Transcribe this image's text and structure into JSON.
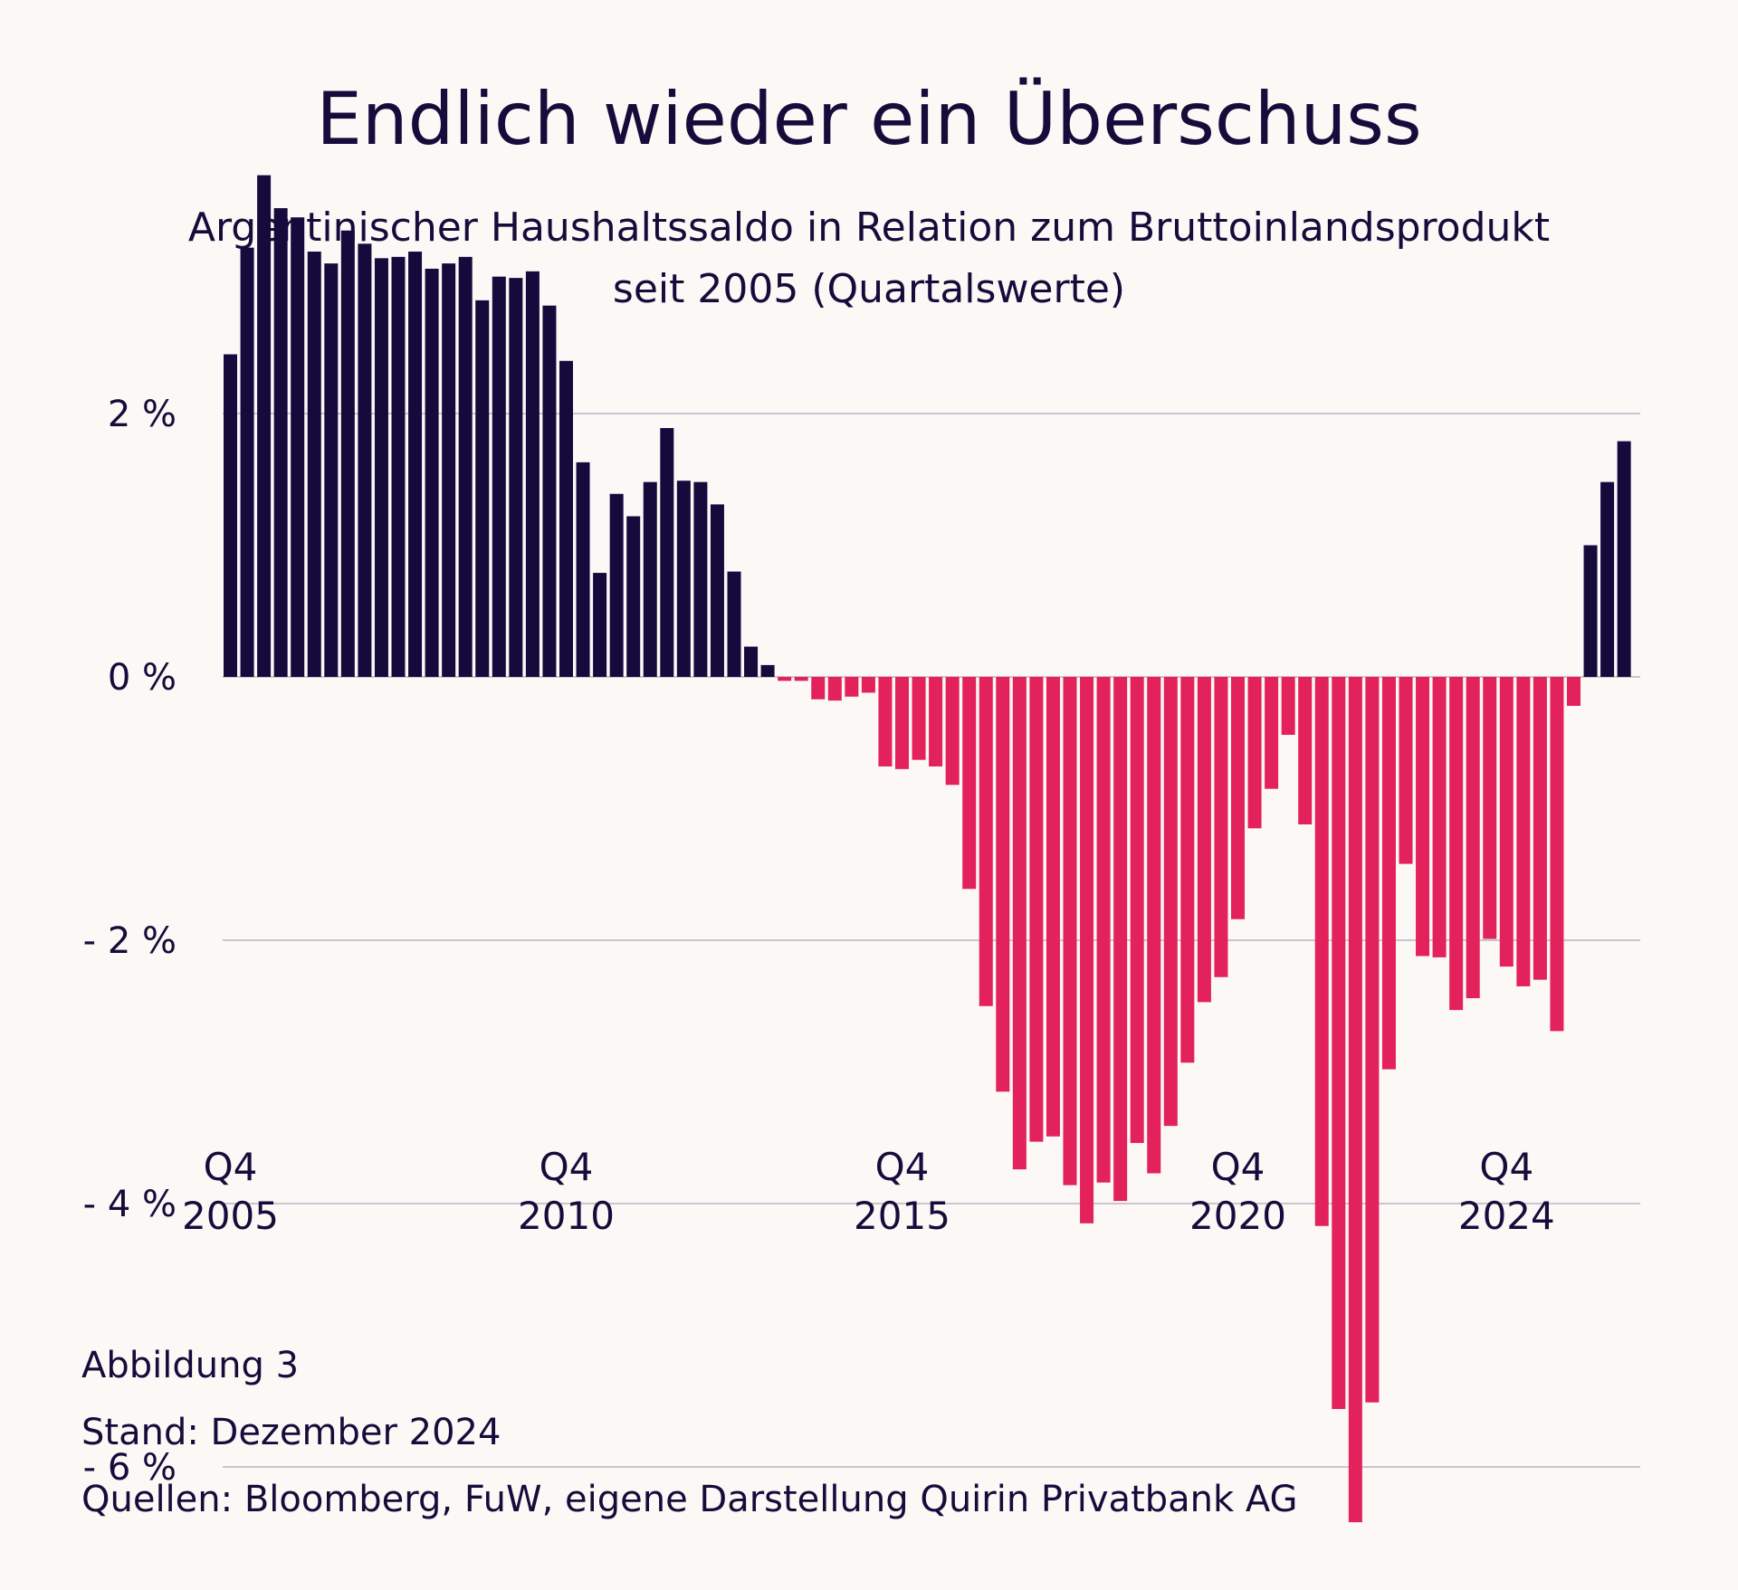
{
  "title": "Endlich wieder ein Überschuss",
  "subtitle": {
    "line1": "Argentinischer Haushaltssaldo in Relation zum Bruttoinlandsprodukt",
    "line2": "seit 2005 (Quartalswerte)"
  },
  "colors": {
    "positive": "#160a3d",
    "negative": "#e3215a",
    "grid": "#b9b4c4",
    "text": "#170b3b",
    "background": "#fbf8f6"
  },
  "chart_data": {
    "type": "bar",
    "title": "",
    "xlabel": "",
    "ylabel": "",
    "ylim": [
      -7,
      4
    ],
    "yticks": [
      {
        "value": 2,
        "label": "2 %"
      },
      {
        "value": 0,
        "label": "0 %"
      },
      {
        "value": -2,
        "label": "- 2 %"
      },
      {
        "value": -4,
        "label": "- 4 %"
      },
      {
        "value": -6,
        "label": "- 6 %"
      }
    ],
    "grid": true,
    "xticks": [
      {
        "index": 0,
        "line1": "Q4",
        "line2": "2005"
      },
      {
        "index": 20,
        "line1": "Q4",
        "line2": "2010"
      },
      {
        "index": 40,
        "line1": "Q4",
        "line2": "2015"
      },
      {
        "index": 60,
        "line1": "Q4",
        "line2": "2020"
      },
      {
        "index": 76,
        "line1": "Q4",
        "line2": "2024"
      }
    ],
    "values": [
      2.45,
      3.26,
      3.81,
      3.56,
      3.49,
      3.23,
      3.14,
      3.39,
      3.29,
      3.18,
      3.19,
      3.23,
      3.1,
      3.14,
      3.19,
      2.86,
      3.04,
      3.03,
      3.08,
      2.82,
      2.4,
      1.63,
      0.79,
      1.39,
      1.22,
      1.48,
      1.89,
      1.49,
      1.48,
      1.31,
      0.8,
      0.23,
      0.09,
      -0.03,
      -0.03,
      -0.17,
      -0.18,
      -0.15,
      -0.12,
      -0.68,
      -0.7,
      -0.63,
      -0.68,
      -0.82,
      -1.61,
      -2.5,
      -3.15,
      -3.74,
      -3.53,
      -3.49,
      -3.86,
      -4.15,
      -3.84,
      -3.98,
      -3.54,
      -3.77,
      -3.41,
      -2.93,
      -2.47,
      -2.28,
      -1.84,
      -1.15,
      -0.85,
      -0.44,
      -1.12,
      -4.17,
      -5.56,
      -6.42,
      -5.51,
      -2.98,
      -1.42,
      -2.12,
      -2.13,
      -2.53,
      -2.44,
      -1.99,
      -2.2,
      -2.35,
      -2.3,
      -2.69,
      -0.22,
      1.0,
      1.48,
      1.79
    ]
  },
  "footer": {
    "figure": "Abbildung 3",
    "date": "Stand: Dezember 2024",
    "sources": "Quellen: Bloomberg, FuW, eigene Darstellung Quirin Privatbank AG"
  }
}
